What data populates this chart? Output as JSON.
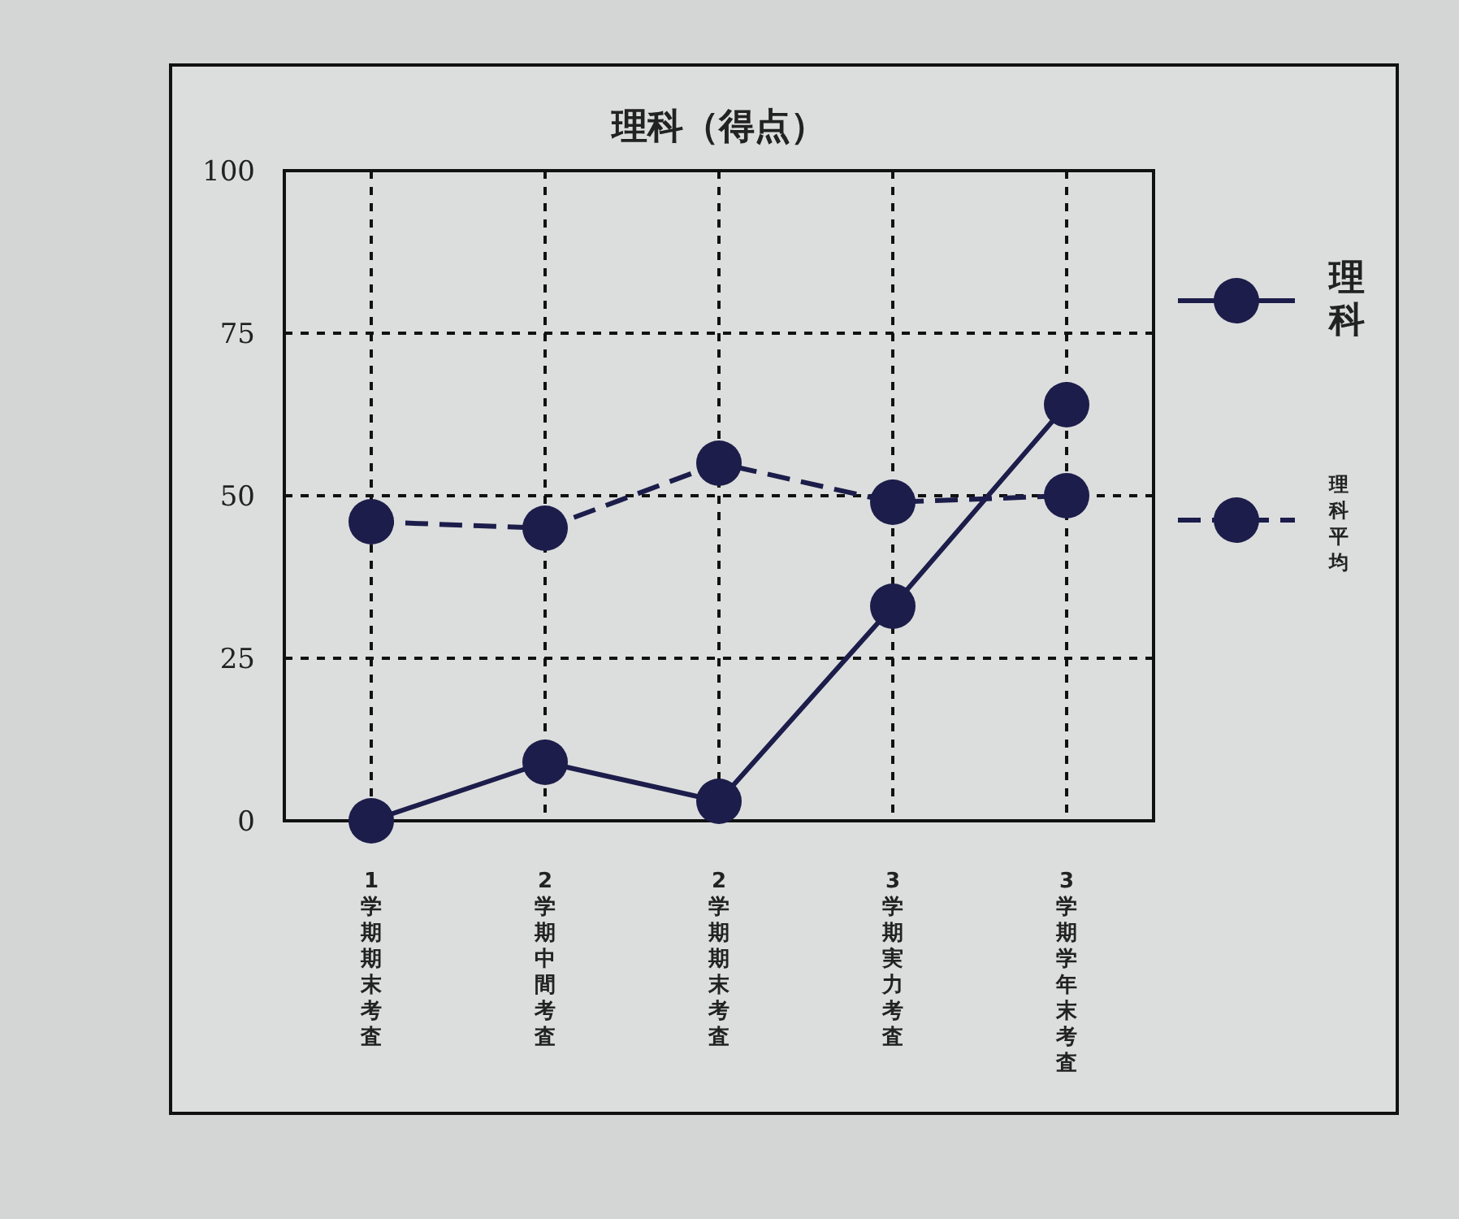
{
  "chart_data": {
    "type": "line",
    "title": "理科（得点）",
    "categories": [
      "1学期期末考査",
      "2学期中間考査",
      "2学期期末考査",
      "3学期実力考査",
      "3学期学年末考査"
    ],
    "series": [
      {
        "name": "理科",
        "color": "#1c1d4a",
        "line_style": "solid",
        "values": [
          0,
          9,
          3,
          33,
          64
        ]
      },
      {
        "name": "理科平均",
        "color": "#1c1d4a",
        "line_style": "dashed",
        "values": [
          46,
          45,
          55,
          49,
          50
        ]
      }
    ],
    "ylim": [
      0,
      100
    ],
    "yticks": [
      0,
      25,
      50,
      75,
      100
    ],
    "grid": true,
    "legend": "right",
    "marker": "circle"
  }
}
